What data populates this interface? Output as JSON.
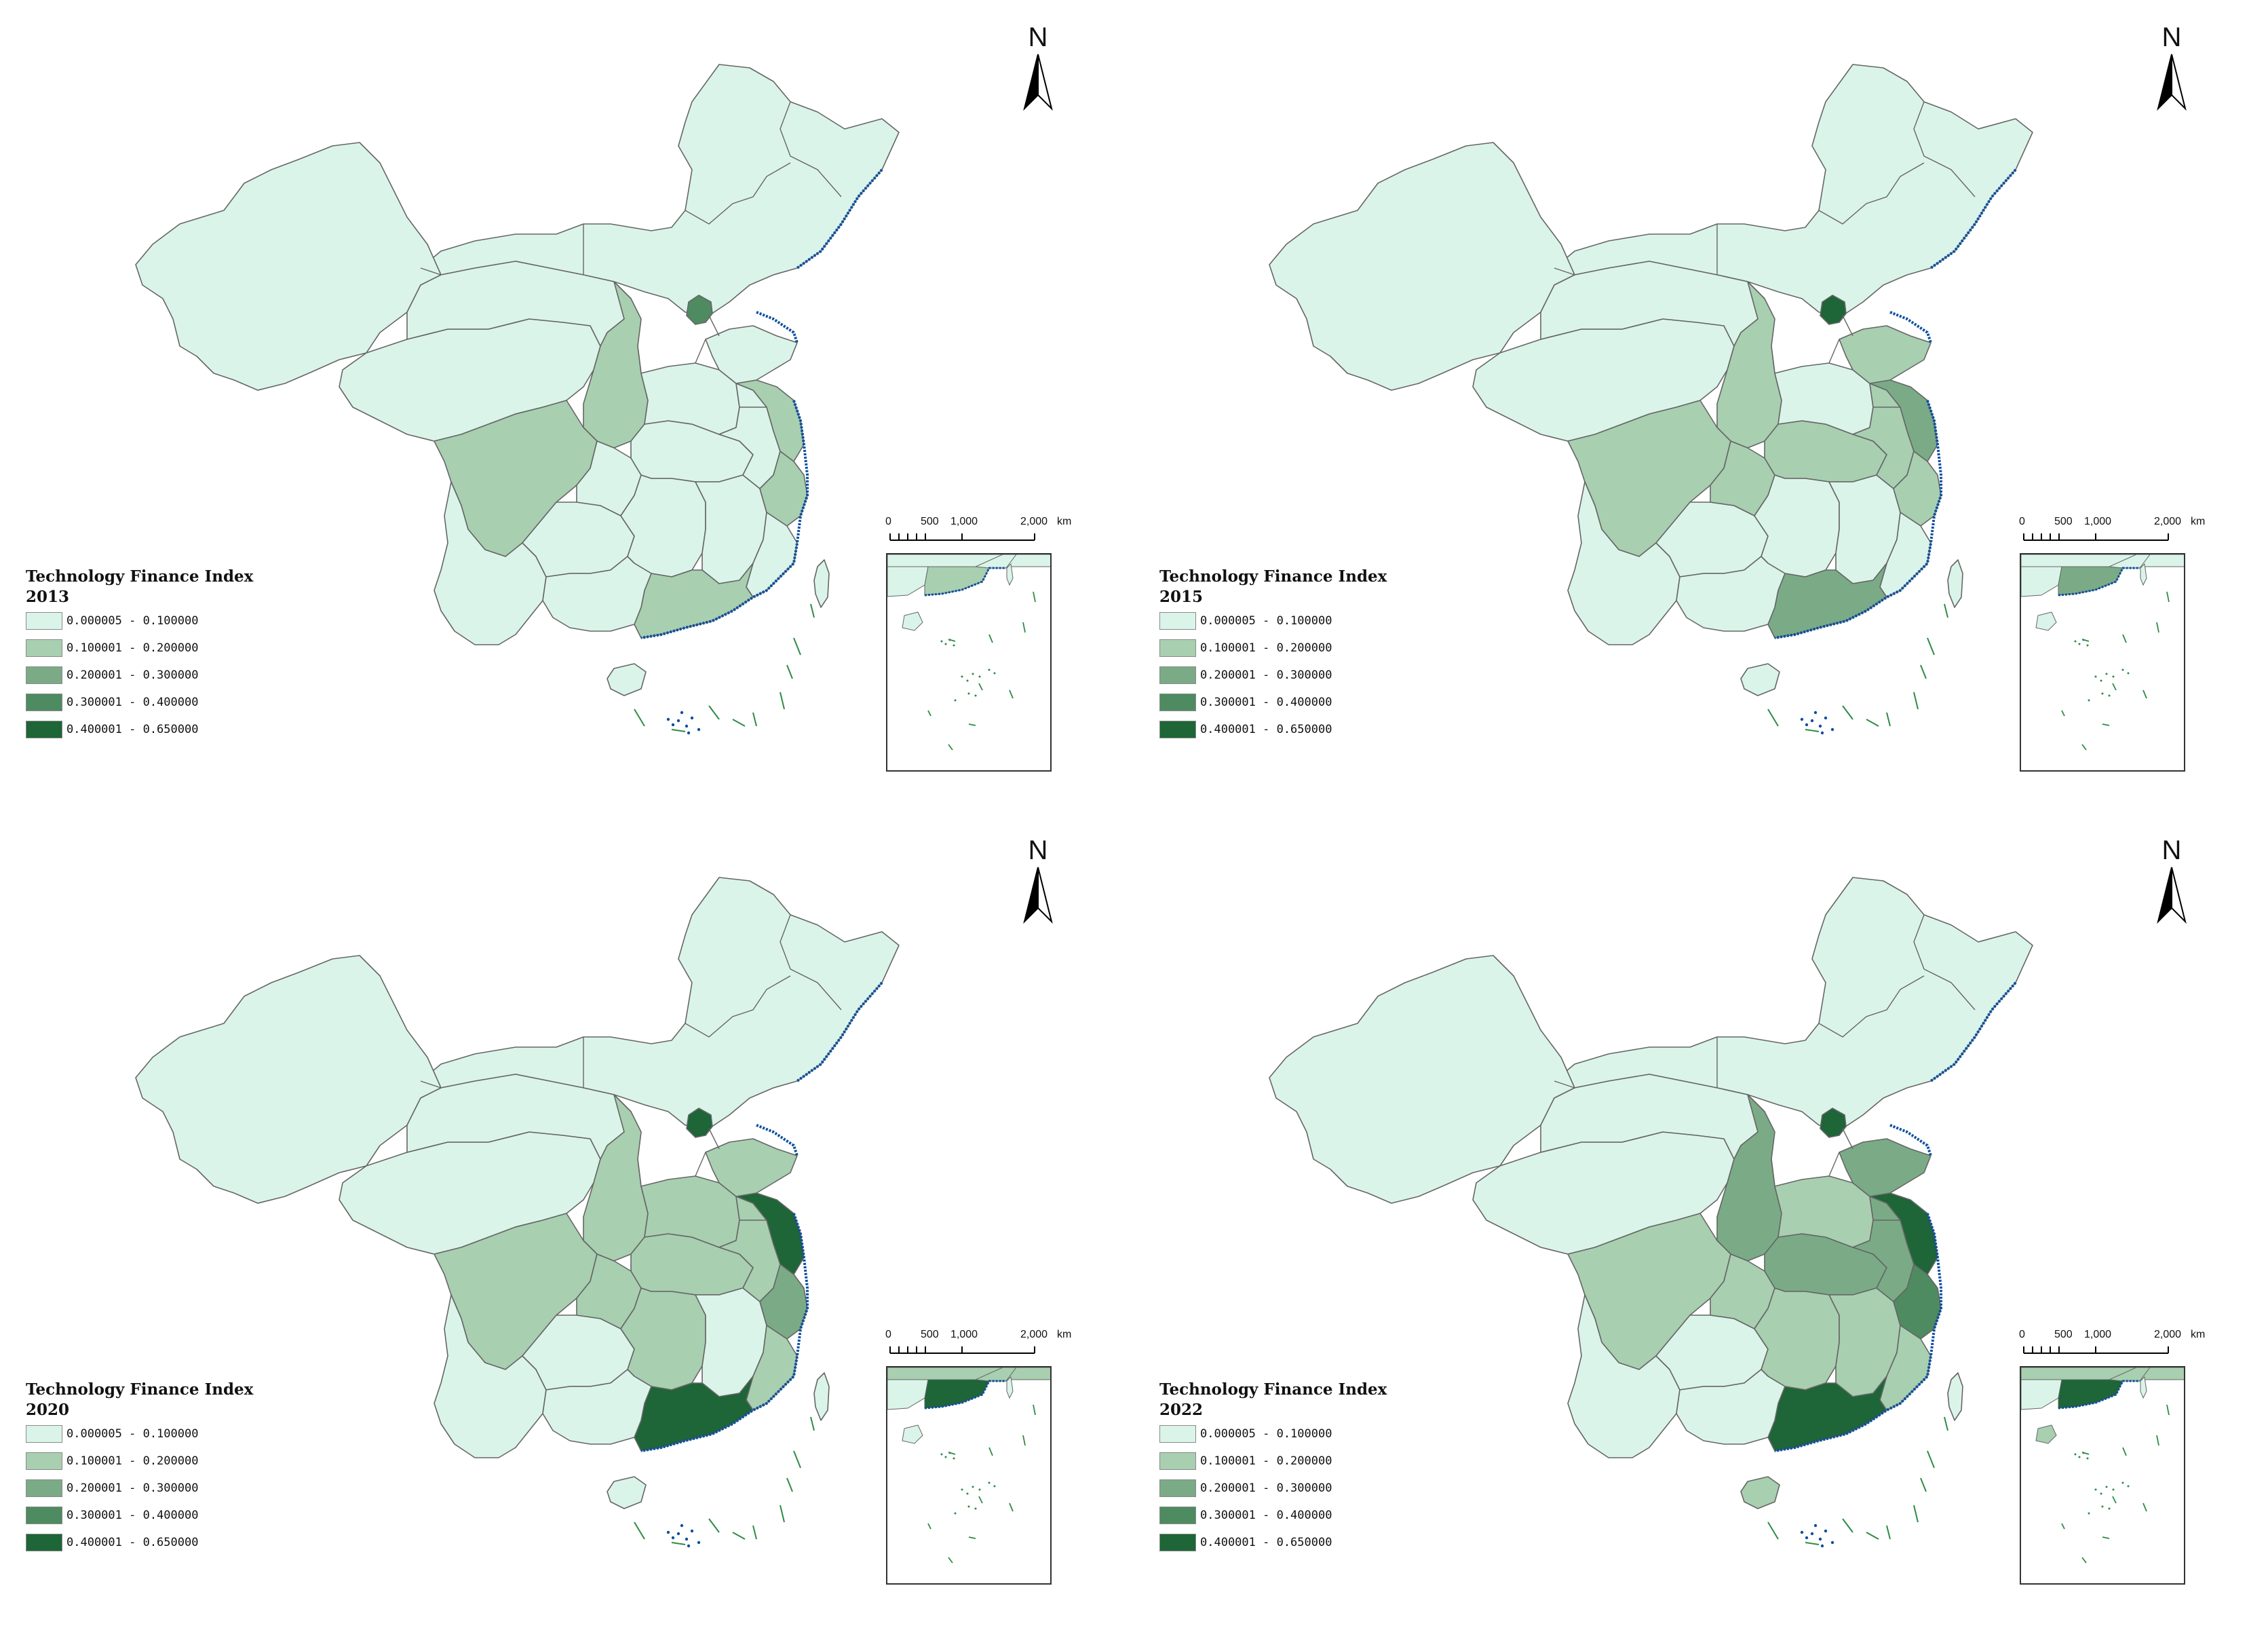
{
  "colors": {
    "class1": "#dbf4ea",
    "class2": "#a8cfb0",
    "class3": "#7aab86",
    "class4": "#4e8b60",
    "class5": "#1e6537",
    "boundary": "#666666",
    "coast": "#0b4fa0",
    "islands": "#2e8b45"
  },
  "legend": {
    "title": "Technology Finance Index",
    "classes": [
      {
        "label": "0.000005 - 0.100000",
        "color": "#dbf4ea"
      },
      {
        "label": "0.100001 - 0.200000",
        "color": "#a8cfb0"
      },
      {
        "label": "0.200001 - 0.300000",
        "color": "#7aab86"
      },
      {
        "label": "0.300001 - 0.400000",
        "color": "#4e8b60"
      },
      {
        "label": "0.400001 - 0.650000",
        "color": "#1e6537"
      }
    ]
  },
  "north_arrow": {
    "label": "N",
    "icon": "north-arrow-icon"
  },
  "scale_bar": {
    "labels": [
      "0",
      "500",
      "1,000",
      "2,000"
    ],
    "unit": "km"
  },
  "panels": [
    {
      "year": "2013",
      "classes": {
        "north": 1,
        "nw": 1,
        "qinghai": 1,
        "gansu": 1,
        "shaanxi": 2,
        "sichuan": 2,
        "yunnan": 1,
        "guizhou": 1,
        "chongqing": 1,
        "hubei": 1,
        "henan": 1,
        "hunan": 1,
        "jiangxi": 1,
        "anhui": 1,
        "jiangsu": 2,
        "zhejiang": 2,
        "shandong": 1,
        "fujian": 1,
        "guangdong": 2,
        "guangxi": 1,
        "beijing": 4,
        "hainan": 1,
        "taiwan": 1
      }
    },
    {
      "year": "2015",
      "classes": {
        "north": 1,
        "nw": 1,
        "qinghai": 1,
        "gansu": 1,
        "shaanxi": 2,
        "sichuan": 2,
        "yunnan": 1,
        "guizhou": 1,
        "chongqing": 2,
        "hubei": 2,
        "henan": 1,
        "hunan": 1,
        "jiangxi": 1,
        "anhui": 2,
        "jiangsu": 3,
        "zhejiang": 2,
        "shandong": 2,
        "fujian": 1,
        "guangdong": 3,
        "guangxi": 1,
        "beijing": 5,
        "hainan": 1,
        "taiwan": 1
      }
    },
    {
      "year": "2020",
      "classes": {
        "north": 1,
        "nw": 1,
        "qinghai": 1,
        "gansu": 1,
        "shaanxi": 2,
        "sichuan": 2,
        "yunnan": 1,
        "guizhou": 1,
        "chongqing": 2,
        "hubei": 2,
        "henan": 2,
        "hunan": 2,
        "jiangxi": 1,
        "anhui": 2,
        "jiangsu": 5,
        "zhejiang": 3,
        "shandong": 2,
        "fujian": 2,
        "guangdong": 5,
        "guangxi": 1,
        "beijing": 5,
        "hainan": 1,
        "taiwan": 1
      }
    },
    {
      "year": "2022",
      "classes": {
        "north": 1,
        "nw": 1,
        "qinghai": 1,
        "gansu": 1,
        "shaanxi": 3,
        "sichuan": 2,
        "yunnan": 1,
        "guizhou": 1,
        "chongqing": 2,
        "hubei": 3,
        "henan": 2,
        "hunan": 2,
        "jiangxi": 2,
        "anhui": 3,
        "jiangsu": 5,
        "zhejiang": 4,
        "shandong": 3,
        "fujian": 2,
        "guangdong": 5,
        "guangxi": 1,
        "beijing": 5,
        "hainan": 2,
        "taiwan": 1
      }
    }
  ]
}
